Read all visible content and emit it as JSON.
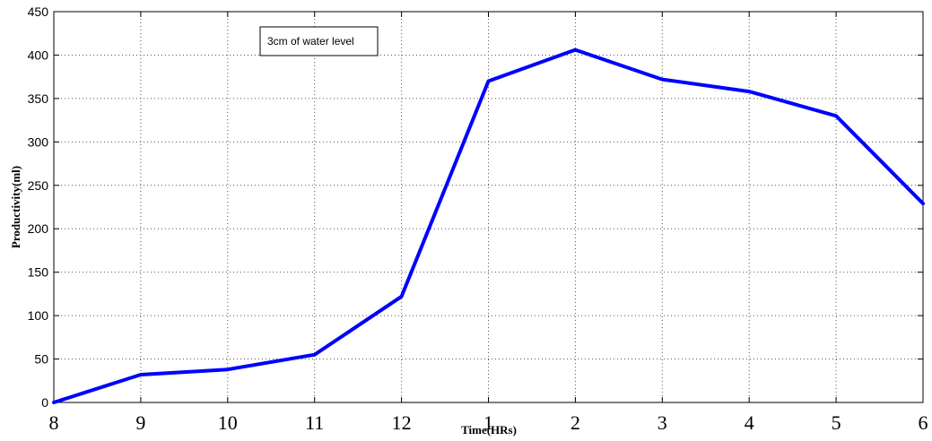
{
  "chart_data": {
    "type": "line",
    "title": "",
    "xlabel": "Time(HRs)",
    "ylabel": "Productivity(ml)",
    "categories": [
      "8",
      "9",
      "10",
      "11",
      "12",
      "1",
      "2",
      "3",
      "4",
      "5",
      "6"
    ],
    "series": [
      {
        "name": "3cm of water level",
        "color": "#0000ff",
        "values": [
          0,
          32,
          38,
          55,
          122,
          370,
          406,
          372,
          358,
          330,
          229
        ]
      }
    ],
    "ylim": [
      0,
      450
    ],
    "yticks": [
      0,
      50,
      100,
      150,
      200,
      250,
      300,
      350,
      400,
      450
    ],
    "grid": true,
    "legend_position": "top-left"
  }
}
